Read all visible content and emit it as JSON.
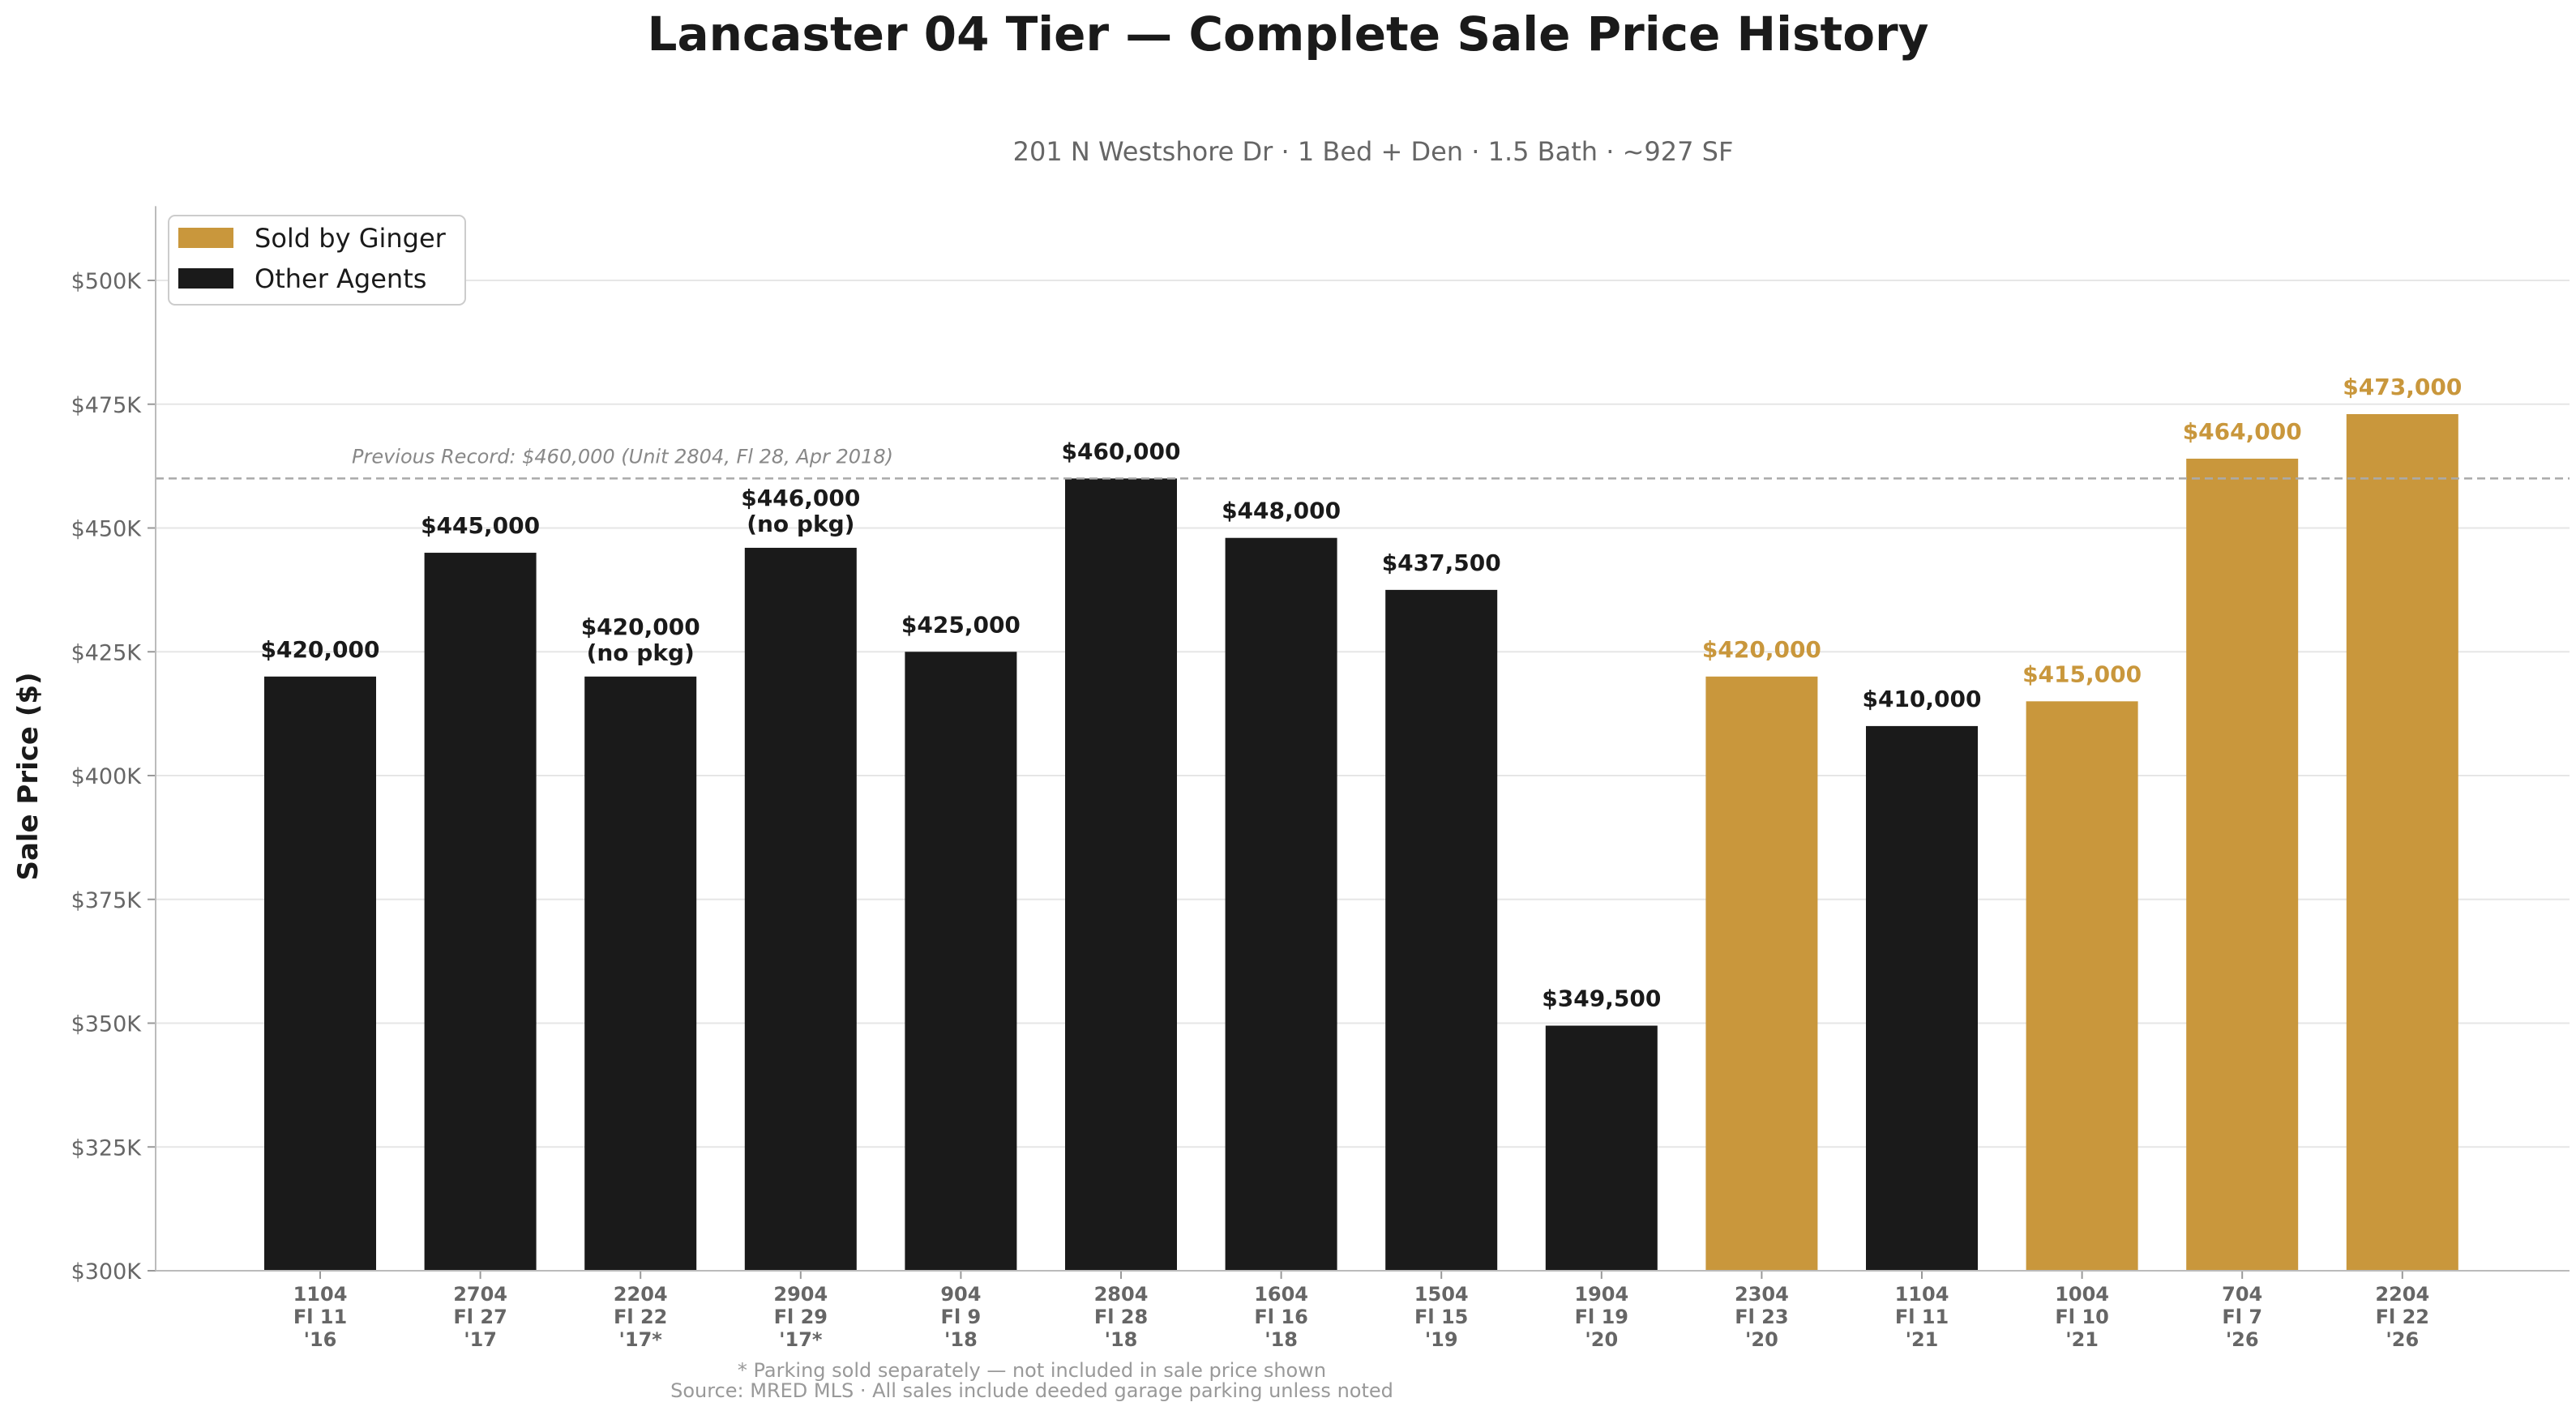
{
  "chart_data": {
    "type": "bar",
    "title": "Lancaster 04 Tier — Complete Sale Price History",
    "subtitle": "201 N Westshore Dr · 1 Bed + Den · 1.5 Bath · ~927 SF",
    "ylabel": "Sale Price ($)",
    "xlabel": "",
    "ylim": [
      300000,
      515000
    ],
    "yticks": [
      300000,
      325000,
      350000,
      375000,
      400000,
      425000,
      450000,
      475000,
      500000
    ],
    "ytick_labels": [
      "$300K",
      "$325K",
      "$350K",
      "$375K",
      "$400K",
      "$425K",
      "$450K",
      "$475K",
      "$500K"
    ],
    "grid": true,
    "legend_position": "top-left",
    "legend": [
      {
        "label": "Sold by Ginger",
        "color": "#C9973C"
      },
      {
        "label": "Other Agents",
        "color": "#1A1A1A"
      }
    ],
    "colors": {
      "ginger": "#C9973C",
      "other": "#1A1A1A"
    },
    "reference_line": {
      "value": 460000,
      "label": "Previous Record: $460,000 (Unit 2804, Fl 28, Apr 2018)"
    },
    "bars": [
      {
        "unit": "1104",
        "floor": "Fl 11",
        "year": "'16",
        "value": 420000,
        "label": "$420,000",
        "note": "",
        "agent": "other"
      },
      {
        "unit": "2704",
        "floor": "Fl 27",
        "year": "'17",
        "value": 445000,
        "label": "$445,000",
        "note": "",
        "agent": "other"
      },
      {
        "unit": "2204",
        "floor": "Fl 22",
        "year": "'17*",
        "value": 420000,
        "label": "$420,000",
        "note": "(no pkg)",
        "agent": "other"
      },
      {
        "unit": "2904",
        "floor": "Fl 29",
        "year": "'17*",
        "value": 446000,
        "label": "$446,000",
        "note": "(no pkg)",
        "agent": "other"
      },
      {
        "unit": "904",
        "floor": "Fl 9",
        "year": "'18",
        "value": 425000,
        "label": "$425,000",
        "note": "",
        "agent": "other"
      },
      {
        "unit": "2804",
        "floor": "Fl 28",
        "year": "'18",
        "value": 460000,
        "label": "$460,000",
        "note": "",
        "agent": "other"
      },
      {
        "unit": "1604",
        "floor": "Fl 16",
        "year": "'18",
        "value": 448000,
        "label": "$448,000",
        "note": "",
        "agent": "other"
      },
      {
        "unit": "1504",
        "floor": "Fl 15",
        "year": "'19",
        "value": 437500,
        "label": "$437,500",
        "note": "",
        "agent": "other"
      },
      {
        "unit": "1904",
        "floor": "Fl 19",
        "year": "'20",
        "value": 349500,
        "label": "$349,500",
        "note": "",
        "agent": "other"
      },
      {
        "unit": "2304",
        "floor": "Fl 23",
        "year": "'20",
        "value": 420000,
        "label": "$420,000",
        "note": "",
        "agent": "ginger"
      },
      {
        "unit": "1104",
        "floor": "Fl 11",
        "year": "'21",
        "value": 410000,
        "label": "$410,000",
        "note": "",
        "agent": "other"
      },
      {
        "unit": "1004",
        "floor": "Fl 10",
        "year": "'21",
        "value": 415000,
        "label": "$415,000",
        "note": "",
        "agent": "ginger"
      },
      {
        "unit": "704",
        "floor": "Fl 7",
        "year": "'26",
        "value": 464000,
        "label": "$464,000",
        "note": "",
        "agent": "ginger"
      },
      {
        "unit": "2204",
        "floor": "Fl 22",
        "year": "'26",
        "value": 473000,
        "label": "$473,000",
        "note": "",
        "agent": "ginger"
      }
    ],
    "footnotes": [
      "* Parking sold separately — not included in sale price shown",
      "Source: MRED MLS · All sales include deeded garage parking unless noted"
    ]
  }
}
